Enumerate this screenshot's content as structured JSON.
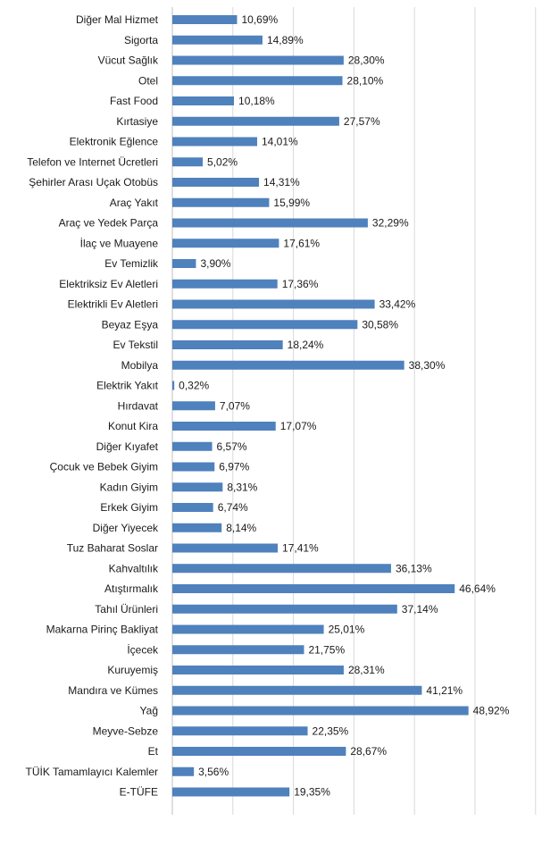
{
  "chart_data": {
    "type": "bar",
    "orientation": "horizontal",
    "title": "",
    "xlabel": "",
    "ylabel": "",
    "xlim": [
      0,
      60
    ],
    "grid": true,
    "legend": "none",
    "bar_color": "#4f81bd",
    "categories": [
      "Diğer Mal Hizmet",
      "Sigorta",
      "Vücut Sağlık",
      "Otel",
      "Fast Food",
      "Kırtasiye",
      "Elektronik Eğlence",
      "Telefon ve Internet Ücretleri",
      "Şehirler Arası Uçak Otobüs",
      "Araç Yakıt",
      "Araç ve Yedek Parça",
      "İlaç ve Muayene",
      "Ev Temizlik",
      "Elektriksiz Ev Aletleri",
      "Elektrikli Ev Aletleri",
      "Beyaz Eşya",
      "Ev Tekstil",
      "Mobilya",
      "Elektrik Yakıt",
      "Hırdavat",
      "Konut Kira",
      "Diğer Kıyafet",
      "Çocuk ve Bebek Giyim",
      "Kadın Giyim",
      "Erkek Giyim",
      "Diğer Yiyecek",
      "Tuz Baharat Soslar",
      "Kahvaltılık",
      "Atıştırmalık",
      "Tahıl Ürünleri",
      "Makarna Pirinç Bakliyat",
      "İçecek",
      "Kuruyemiş",
      "Mandıra ve Kümes",
      "Yağ",
      "Meyve-Sebze",
      "Et",
      "TÜİK Tamamlayıcı Kalemler",
      "E-TÜFE"
    ],
    "values": [
      10.69,
      14.89,
      28.3,
      28.1,
      10.18,
      27.57,
      14.01,
      5.02,
      14.31,
      15.99,
      32.29,
      17.61,
      3.9,
      17.36,
      33.42,
      30.58,
      18.24,
      38.3,
      0.32,
      7.07,
      17.07,
      6.57,
      6.97,
      8.31,
      6.74,
      8.14,
      17.41,
      36.13,
      46.64,
      37.14,
      25.01,
      21.75,
      28.31,
      41.21,
      48.92,
      22.35,
      28.67,
      3.56,
      19.35
    ],
    "value_labels": [
      "10,69%",
      "14,89%",
      "28,30%",
      "28,10%",
      "10,18%",
      "27,57%",
      "14,01%",
      "5,02%",
      "14,31%",
      "15,99%",
      "32,29%",
      "17,61%",
      "3,90%",
      "17,36%",
      "33,42%",
      "30,58%",
      "18,24%",
      "38,30%",
      "0,32%",
      "7,07%",
      "17,07%",
      "6,57%",
      "6,97%",
      "8,31%",
      "6,74%",
      "8,14%",
      "17,41%",
      "36,13%",
      "46,64%",
      "37,14%",
      "25,01%",
      "21,75%",
      "28,31%",
      "41,21%",
      "48,92%",
      "22,35%",
      "28,67%",
      "3,56%",
      "19,35%"
    ]
  }
}
